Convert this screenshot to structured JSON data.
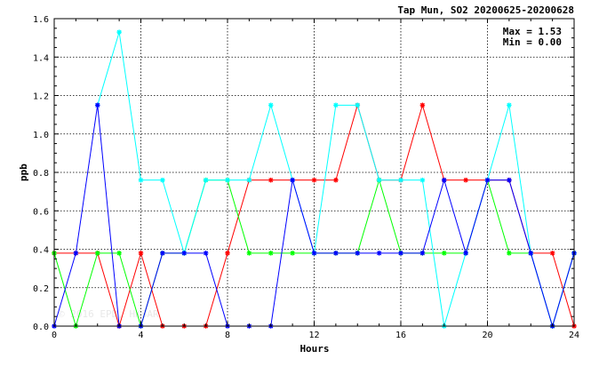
{
  "chart_data": {
    "type": "line",
    "title": "Tap Mun, SO2 20200625-20200628",
    "xlabel": "Hours",
    "ylabel": "ppb",
    "xlim": [
      0,
      24
    ],
    "ylim": [
      0,
      1.6
    ],
    "x_ticks": [
      "0",
      "4",
      "8",
      "12",
      "16",
      "20",
      "24"
    ],
    "y_ticks": [
      "0.0",
      "0.2",
      "0.4",
      "0.6",
      "0.8",
      "1.0",
      "1.2",
      "1.4",
      "1.6"
    ],
    "grid": true,
    "legend": "none",
    "stats": {
      "max": "Max = 1.53",
      "min": "Min = 0.00"
    },
    "watermark": "© 2016 EPD, HKSAR",
    "x": [
      0,
      1,
      2,
      3,
      4,
      5,
      6,
      7,
      8,
      9,
      10,
      11,
      12,
      13,
      14,
      15,
      16,
      17,
      18,
      19,
      20,
      21,
      22,
      23,
      24
    ],
    "series": [
      {
        "color": "#ff0000",
        "values": [
          0.38,
          0.38,
          0.38,
          0.0,
          0.38,
          0.0,
          0.0,
          0.0,
          0.38,
          0.76,
          0.76,
          0.76,
          0.76,
          0.76,
          1.15,
          0.76,
          0.76,
          1.15,
          0.76,
          0.76,
          0.76,
          0.76,
          0.38,
          0.38,
          0.0
        ]
      },
      {
        "color": "#00ff00",
        "values": [
          0.38,
          0.0,
          0.38,
          0.38,
          0.0,
          0.38,
          0.38,
          0.76,
          0.76,
          0.38,
          0.38,
          0.38,
          0.38,
          0.38,
          0.38,
          0.76,
          0.38,
          0.38,
          0.38,
          0.38,
          0.76,
          0.38,
          0.38,
          0.0,
          0.38
        ]
      },
      {
        "color": "#00ffff",
        "values": [
          null,
          null,
          1.15,
          1.53,
          0.76,
          0.76,
          0.38,
          0.76,
          0.76,
          0.76,
          1.15,
          0.76,
          0.38,
          1.15,
          1.15,
          0.76,
          0.76,
          0.76,
          0.0,
          0.38,
          0.76,
          1.15,
          0.38,
          0.0,
          0.38
        ]
      },
      {
        "color": "#0000ff",
        "values": [
          0.0,
          0.38,
          1.15,
          0.0,
          0.0,
          0.38,
          0.38,
          0.38,
          0.0,
          0.0,
          0.0,
          0.76,
          0.38,
          0.38,
          0.38,
          0.38,
          0.38,
          0.38,
          0.76,
          0.38,
          0.76,
          0.76,
          0.38,
          0.0,
          0.38
        ]
      }
    ]
  }
}
